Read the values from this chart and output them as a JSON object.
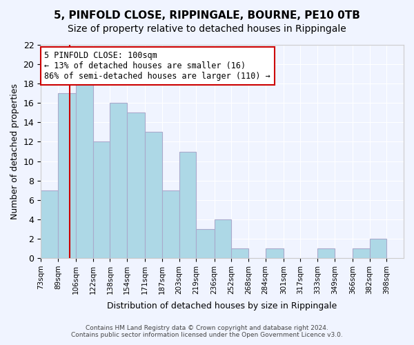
{
  "title": "5, PINFOLD CLOSE, RIPPINGALE, BOURNE, PE10 0TB",
  "subtitle": "Size of property relative to detached houses in Rippingale",
  "xlabel": "Distribution of detached houses by size in Rippingale",
  "ylabel": "Number of detached properties",
  "bin_labels": [
    "73sqm",
    "89sqm",
    "106sqm",
    "122sqm",
    "138sqm",
    "154sqm",
    "171sqm",
    "187sqm",
    "203sqm",
    "219sqm",
    "236sqm",
    "252sqm",
    "268sqm",
    "284sqm",
    "301sqm",
    "317sqm",
    "333sqm",
    "349sqm",
    "366sqm",
    "382sqm",
    "398sqm"
  ],
  "bin_edges": [
    73,
    89,
    106,
    122,
    138,
    154,
    171,
    187,
    203,
    219,
    236,
    252,
    268,
    284,
    301,
    317,
    333,
    349,
    366,
    382,
    398
  ],
  "counts": [
    7,
    17,
    18,
    12,
    16,
    15,
    13,
    7,
    11,
    3,
    4,
    1,
    0,
    1,
    0,
    0,
    1,
    0,
    1,
    2
  ],
  "bar_color": "#add8e6",
  "bar_edgecolor": "#aaaacc",
  "vline_x": 100,
  "vline_color": "#cc0000",
  "ylim": [
    0,
    22
  ],
  "yticks": [
    0,
    2,
    4,
    6,
    8,
    10,
    12,
    14,
    16,
    18,
    20,
    22
  ],
  "annotation_title": "5 PINFOLD CLOSE: 100sqm",
  "annotation_line1": "← 13% of detached houses are smaller (16)",
  "annotation_line2": "86% of semi-detached houses are larger (110) →",
  "annotation_box_color": "#ffffff",
  "annotation_box_edgecolor": "#cc0000",
  "footer1": "Contains HM Land Registry data © Crown copyright and database right 2024.",
  "footer2": "Contains public sector information licensed under the Open Government Licence v3.0.",
  "background_color": "#f0f4ff",
  "grid_color": "#ffffff",
  "title_fontsize": 11,
  "subtitle_fontsize": 10
}
